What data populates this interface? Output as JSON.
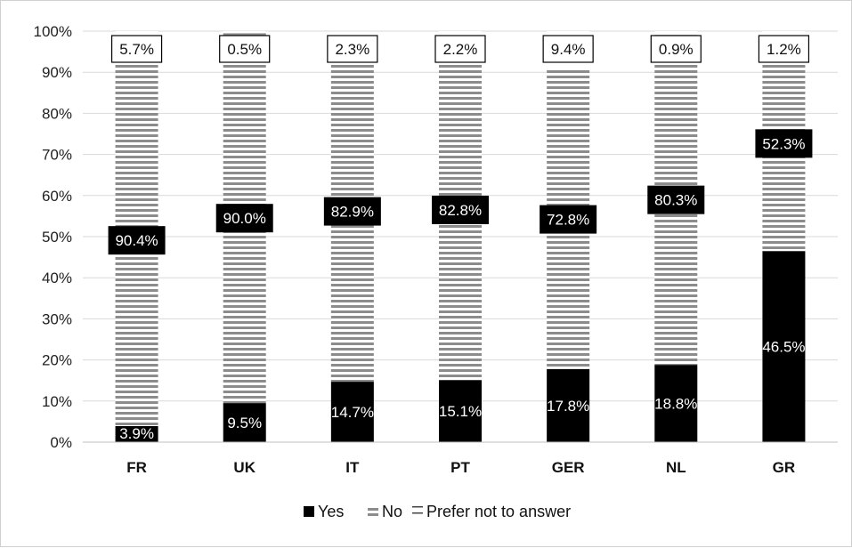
{
  "chart_data": {
    "type": "bar",
    "stacked": true,
    "percent_axis": true,
    "ylim": [
      0,
      100
    ],
    "yticks": [
      "0%",
      "10%",
      "20%",
      "30%",
      "40%",
      "50%",
      "60%",
      "70%",
      "80%",
      "90%",
      "100%"
    ],
    "categories": [
      "FR",
      "UK",
      "IT",
      "PT",
      "GER",
      "NL",
      "GR"
    ],
    "series": [
      {
        "name": "Yes",
        "values": [
          3.9,
          9.5,
          14.7,
          15.1,
          17.8,
          18.8,
          46.5
        ],
        "labels": [
          "3.9%",
          "9.5%",
          "14.7%",
          "15.1%",
          "17.8%",
          "18.8%",
          "46.5%"
        ],
        "fill": "#000000"
      },
      {
        "name": "No",
        "values": [
          90.4,
          90.0,
          82.9,
          82.8,
          72.8,
          80.3,
          52.3
        ],
        "labels": [
          "90.4%",
          "90.0%",
          "82.9%",
          "82.8%",
          "72.8%",
          "80.3%",
          "52.3%"
        ],
        "fill": "hatch"
      },
      {
        "name": "Prefer not to answer",
        "values": [
          5.7,
          0.5,
          2.3,
          2.2,
          9.4,
          0.9,
          1.2
        ],
        "labels": [
          "5.7%",
          "0.5%",
          "2.3%",
          "2.2%",
          "9.4%",
          "0.9%",
          "1.2%"
        ],
        "fill": "#ffffff"
      }
    ],
    "grid": true,
    "legend_position": "bottom",
    "colors": {
      "yes": "#000000",
      "stripe": "#8c8c8c",
      "gridline": "#d9d9d9",
      "label_box": "#000000"
    }
  }
}
